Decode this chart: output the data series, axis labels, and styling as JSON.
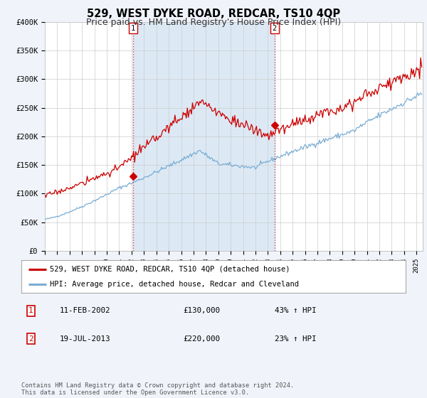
{
  "title": "529, WEST DYKE ROAD, REDCAR, TS10 4QP",
  "subtitle": "Price paid vs. HM Land Registry's House Price Index (HPI)",
  "ylim": [
    0,
    400000
  ],
  "yticks": [
    0,
    50000,
    100000,
    150000,
    200000,
    250000,
    300000,
    350000,
    400000
  ],
  "ytick_labels": [
    "£0",
    "£50K",
    "£100K",
    "£150K",
    "£200K",
    "£250K",
    "£300K",
    "£350K",
    "£400K"
  ],
  "xlim_start": 1995.0,
  "xlim_end": 2025.5,
  "hpi_color": "#7aadd4",
  "hpi_fill_color": "#dce9f5",
  "price_color": "#cc0000",
  "vline_color": "#cc0000",
  "purchase1_date": 2002.11,
  "purchase1_price": 130000,
  "purchase2_date": 2013.54,
  "purchase2_price": 220000,
  "legend_line1": "529, WEST DYKE ROAD, REDCAR, TS10 4QP (detached house)",
  "legend_line2": "HPI: Average price, detached house, Redcar and Cleveland",
  "table_row1_date": "11-FEB-2002",
  "table_row1_price": "£130,000",
  "table_row1_hpi": "43% ↑ HPI",
  "table_row2_date": "19-JUL-2013",
  "table_row2_price": "£220,000",
  "table_row2_hpi": "23% ↑ HPI",
  "footer": "Contains HM Land Registry data © Crown copyright and database right 2024.\nThis data is licensed under the Open Government Licence v3.0.",
  "background_color": "#f0f4fa",
  "plot_bg_color": "#ffffff",
  "title_fontsize": 10.5,
  "subtitle_fontsize": 9
}
